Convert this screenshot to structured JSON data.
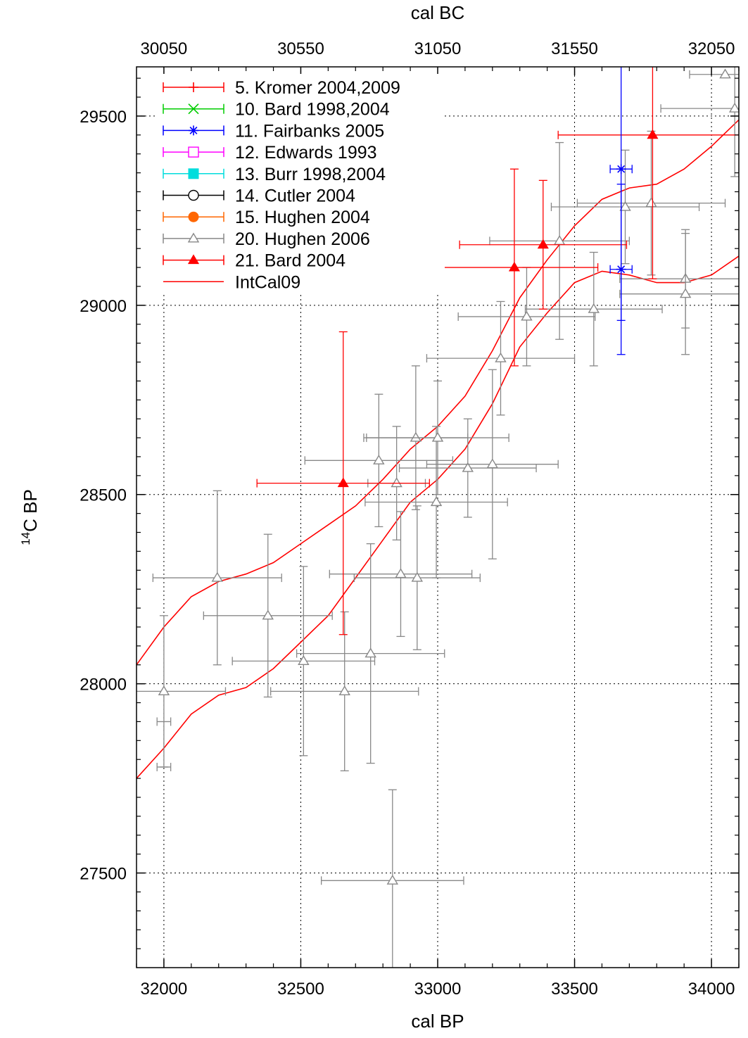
{
  "chart_data": {
    "type": "scatter",
    "title": "",
    "xlabel": "cal BP",
    "x2label": "cal BC",
    "ylabel_base": "C BP",
    "ylabel_sup": "14",
    "xlim": [
      31900,
      34100
    ],
    "ylim": [
      27250,
      29630
    ],
    "x_ticks": [
      "32000",
      "32500",
      "33000",
      "33500",
      "34000"
    ],
    "x2_ticks": [
      "30050",
      "30550",
      "31050",
      "31550",
      "32050"
    ],
    "y_ticks": [
      "27500",
      "28000",
      "28500",
      "29000",
      "29500"
    ],
    "grid": true,
    "legend_position": "top-left",
    "legend": [
      {
        "label": "5. Kromer 2004,2009",
        "color": "#ff0000",
        "marker": "plus"
      },
      {
        "label": "10. Bard 1998,2004",
        "color": "#00cc00",
        "marker": "cross"
      },
      {
        "label": "11. Fairbanks 2005",
        "color": "#0000ff",
        "marker": "star"
      },
      {
        "label": "12. Edwards 1993",
        "color": "#ff00ff",
        "marker": "open-square"
      },
      {
        "label": "13. Burr 1998,2004",
        "color": "#00dddd",
        "marker": "filled-square"
      },
      {
        "label": "14. Cutler 2004",
        "color": "#000000",
        "marker": "open-circle"
      },
      {
        "label": "15. Hughen 2004",
        "color": "#ff6600",
        "marker": "filled-circle"
      },
      {
        "label": "20. Hughen 2006",
        "color": "#888888",
        "marker": "open-triangle"
      },
      {
        "label": "21. Bard 2004",
        "color": "#ff0000",
        "marker": "filled-triangle"
      },
      {
        "label": "IntCal09",
        "color": "#ff0000",
        "marker": "line"
      }
    ],
    "series": [
      {
        "name": "20. Hughen 2006",
        "color": "#888888",
        "marker": "open-triangle",
        "points": [
          {
            "x": 32000,
            "y": 27980,
            "xerr": 225,
            "yerr": 200
          },
          {
            "x": 32000,
            "y": 27900,
            "xerr": 25,
            "yerr": 0
          },
          {
            "x": 32000,
            "y": 27780,
            "xerr": 25,
            "yerr": 0
          },
          {
            "x": 32195,
            "y": 28280,
            "xerr": 235,
            "yerr": 230
          },
          {
            "x": 32380,
            "y": 28180,
            "xerr": 235,
            "yerr": 215
          },
          {
            "x": 32510,
            "y": 28060,
            "xerr": 260,
            "yerr": 250
          },
          {
            "x": 32660,
            "y": 27980,
            "xerr": 270,
            "yerr": 210
          },
          {
            "x": 32755,
            "y": 28080,
            "xerr": 270,
            "yerr": 290
          },
          {
            "x": 32785,
            "y": 28590,
            "xerr": 270,
            "yerr": 175
          },
          {
            "x": 32850,
            "y": 28530,
            "xerr": 105,
            "yerr": 150
          },
          {
            "x": 32865,
            "y": 28290,
            "xerr": 260,
            "yerr": 165
          },
          {
            "x": 32920,
            "y": 28650,
            "xerr": 190,
            "yerr": 190
          },
          {
            "x": 32925,
            "y": 28280,
            "xerr": 230,
            "yerr": 190
          },
          {
            "x": 32995,
            "y": 28480,
            "xerr": 260,
            "yerr": 200
          },
          {
            "x": 33000,
            "y": 28650,
            "xerr": 260,
            "yerr": 150
          },
          {
            "x": 33110,
            "y": 28570,
            "xerr": 250,
            "yerr": 130
          },
          {
            "x": 33200,
            "y": 28580,
            "xerr": 240,
            "yerr": 250
          },
          {
            "x": 33230,
            "y": 28860,
            "xerr": 270,
            "yerr": 150
          },
          {
            "x": 33325,
            "y": 28970,
            "xerr": 250,
            "yerr": 130
          },
          {
            "x": 33445,
            "y": 29170,
            "xerr": 255,
            "yerr": 260
          },
          {
            "x": 33570,
            "y": 28990,
            "xerr": 250,
            "yerr": 150
          },
          {
            "x": 33685,
            "y": 29260,
            "xerr": 270,
            "yerr": 150
          },
          {
            "x": 33780,
            "y": 29270,
            "xerr": 270,
            "yerr": 190
          },
          {
            "x": 33905,
            "y": 29070,
            "xerr": 240,
            "yerr": 130
          },
          {
            "x": 33905,
            "y": 29030,
            "xerr": 240,
            "yerr": 160
          },
          {
            "x": 34085,
            "y": 29520,
            "xerr": 270,
            "yerr": 180
          },
          {
            "x": 34050,
            "y": 29610,
            "xerr": 130,
            "yerr": 0
          },
          {
            "x": 32835,
            "y": 27480,
            "xerr": 260,
            "yerr": 240
          }
        ]
      },
      {
        "name": "21. Bard 2004",
        "color": "#ff0000",
        "marker": "filled-triangle",
        "points": [
          {
            "x": 32655,
            "y": 28530,
            "xerr": 315,
            "yerr": 400
          },
          {
            "x": 33280,
            "y": 29100,
            "xerr": 305,
            "yerr": 260
          },
          {
            "x": 33385,
            "y": 29160,
            "xerr": 305,
            "yerr": 170
          },
          {
            "x": 33785,
            "y": 29450,
            "xerr": 345,
            "yerr": 380
          }
        ]
      },
      {
        "name": "11. Fairbanks 2005",
        "color": "#0000ff",
        "marker": "star",
        "points": [
          {
            "x": 33670,
            "y": 29360,
            "xerr": 40,
            "yerr": 400
          },
          {
            "x": 33670,
            "y": 29095,
            "xerr": 40,
            "yerr": 225
          }
        ]
      }
    ],
    "curves": [
      {
        "name": "IntCal09",
        "color": "#ff0000",
        "upper": [
          [
            31900,
            28050
          ],
          [
            32000,
            28150
          ],
          [
            32100,
            28230
          ],
          [
            32200,
            28270
          ],
          [
            32300,
            28290
          ],
          [
            32400,
            28320
          ],
          [
            32500,
            28370
          ],
          [
            32600,
            28420
          ],
          [
            32700,
            28470
          ],
          [
            32800,
            28540
          ],
          [
            32900,
            28620
          ],
          [
            33000,
            28680
          ],
          [
            33100,
            28760
          ],
          [
            33200,
            28880
          ],
          [
            33300,
            29020
          ],
          [
            33400,
            29120
          ],
          [
            33500,
            29210
          ],
          [
            33600,
            29280
          ],
          [
            33700,
            29310
          ],
          [
            33800,
            29320
          ],
          [
            33900,
            29360
          ],
          [
            34000,
            29420
          ],
          [
            34100,
            29490
          ]
        ],
        "lower": [
          [
            31900,
            27750
          ],
          [
            32000,
            27830
          ],
          [
            32100,
            27920
          ],
          [
            32200,
            27970
          ],
          [
            32300,
            27990
          ],
          [
            32400,
            28040
          ],
          [
            32500,
            28110
          ],
          [
            32600,
            28180
          ],
          [
            32700,
            28280
          ],
          [
            32800,
            28380
          ],
          [
            32900,
            28480
          ],
          [
            33000,
            28540
          ],
          [
            33100,
            28620
          ],
          [
            33200,
            28740
          ],
          [
            33300,
            28890
          ],
          [
            33400,
            28980
          ],
          [
            33500,
            29060
          ],
          [
            33600,
            29090
          ],
          [
            33700,
            29080
          ],
          [
            33800,
            29060
          ],
          [
            33900,
            29060
          ],
          [
            34000,
            29080
          ],
          [
            34100,
            29130
          ]
        ]
      }
    ]
  }
}
